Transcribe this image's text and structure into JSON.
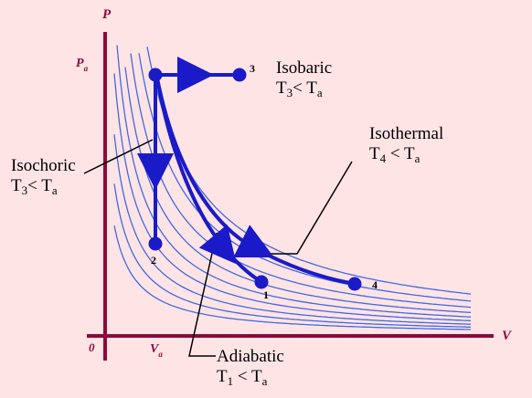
{
  "colors": {
    "background": "#ffe4e6",
    "axis": "#8b0a3a",
    "isotherm": "#4169e1",
    "process": "#1a1ac8",
    "leader": "#000000"
  },
  "axes": {
    "y_label": "P",
    "x_label": "V",
    "origin": "0",
    "pa_main": "P",
    "pa_sub": "a",
    "va_main": "V",
    "va_sub": "a"
  },
  "points": {
    "p1": "1",
    "p2": "2",
    "p3": "3",
    "p4": "4"
  },
  "annotations": {
    "isobaric": {
      "title": "Isobaric",
      "cond_main": "T",
      "cond_sub": "3",
      "cond_rel": "< T",
      "cond_sub2": "a"
    },
    "isothermal": {
      "title": "Isothermal",
      "cond_main": "T",
      "cond_sub": "4",
      "cond_rel": " < T",
      "cond_sub2": "a"
    },
    "isochoric": {
      "title": "Isochoric",
      "cond_main": "T",
      "cond_sub": "3",
      "cond_rel": "< T",
      "cond_sub2": "a"
    },
    "adiabatic": {
      "title": "Adiabatic",
      "cond_main": "T",
      "cond_sub": "1",
      "cond_rel": " < T",
      "cond_sub2": "a"
    }
  }
}
